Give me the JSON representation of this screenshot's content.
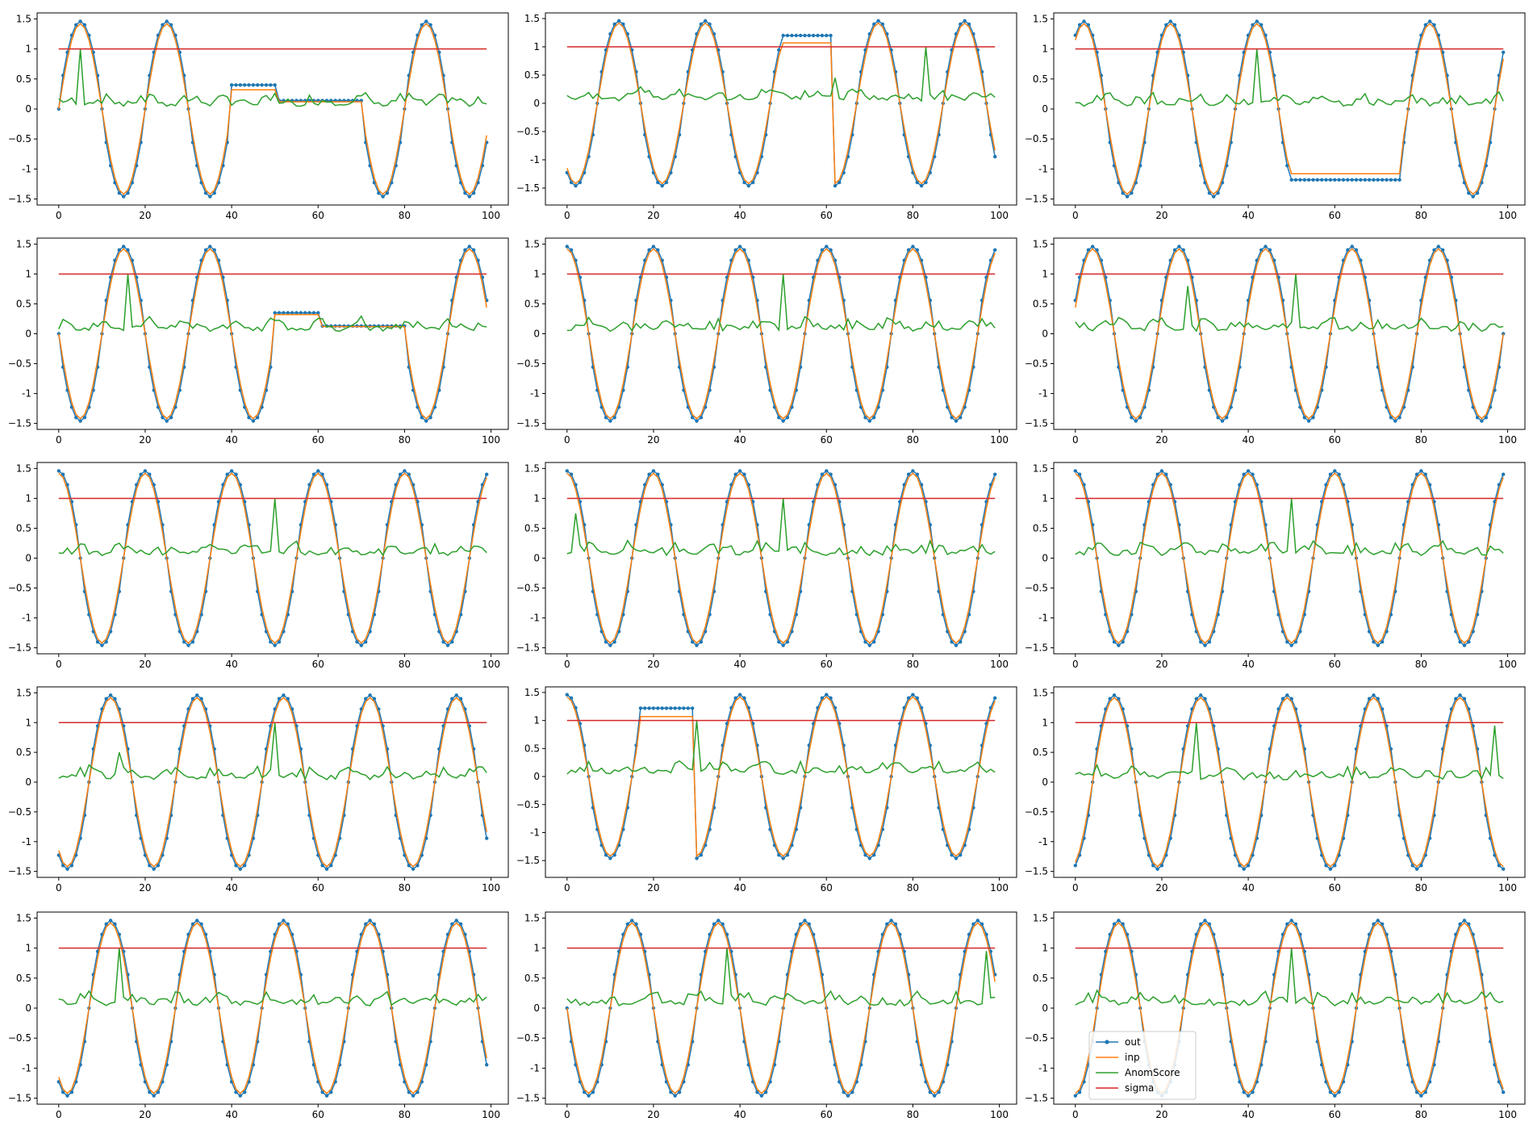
{
  "figure": {
    "rows": 5,
    "cols": 3,
    "legend_entries": [
      "out",
      "inp",
      "AnomScore",
      "sigma"
    ],
    "legend_panel": 14,
    "legend_placement": "lower-left"
  },
  "colors": {
    "out": "#1f77b4",
    "inp": "#ff7f0e",
    "anom": "#2ca02c",
    "sigma": "#d62728"
  },
  "chart_data": [
    {
      "type": "line",
      "title": "",
      "xlabel": "",
      "ylabel": "",
      "xlim": [
        -5,
        104
      ],
      "ylim": [
        -1.6,
        1.6
      ],
      "x_ticks": [
        0,
        20,
        40,
        60,
        80,
        100
      ],
      "y_ticks": [
        -1.5,
        -1.0,
        -0.5,
        0.0,
        0.5,
        1.0,
        1.5
      ],
      "grid": false,
      "sigma": 1.0,
      "sine": {
        "period": 20,
        "peak_x": 5,
        "amplitude": 1.42
      },
      "segments": [
        {
          "x0": 40,
          "x1": 50,
          "inp": 0.32,
          "out": 0.4
        },
        {
          "x0": 51,
          "x1": 70,
          "inp": 0.12,
          "out": 0.14
        }
      ],
      "spikes": [
        {
          "x": 5,
          "value": 1.0
        }
      ],
      "series": [
        {
          "name": "out"
        },
        {
          "name": "inp"
        },
        {
          "name": "AnomScore"
        },
        {
          "name": "sigma"
        }
      ]
    },
    {
      "type": "line",
      "title": "",
      "xlabel": "",
      "ylabel": "",
      "xlim": [
        -5,
        104
      ],
      "ylim": [
        -1.8,
        1.6
      ],
      "x_ticks": [
        0,
        20,
        40,
        60,
        80,
        100
      ],
      "y_ticks": [
        -1.5,
        -1.0,
        -0.5,
        0.0,
        0.5,
        1.0,
        1.5
      ],
      "grid": false,
      "sigma": 1.0,
      "sine": {
        "period": 20,
        "peak_x": 12,
        "amplitude": 1.42
      },
      "segments": [
        {
          "x0": 50,
          "x1": 61,
          "inp": 1.07,
          "out": 1.2
        }
      ],
      "spikes": [
        {
          "x": 83,
          "value": 1.0
        },
        {
          "x": 62,
          "value": 0.45
        }
      ],
      "series": [
        {
          "name": "out"
        },
        {
          "name": "inp"
        },
        {
          "name": "AnomScore"
        },
        {
          "name": "sigma"
        }
      ]
    },
    {
      "type": "line",
      "title": "",
      "xlabel": "",
      "ylabel": "",
      "xlim": [
        -5,
        104
      ],
      "ylim": [
        -1.6,
        1.6
      ],
      "x_ticks": [
        0,
        20,
        40,
        60,
        80,
        100
      ],
      "y_ticks": [
        -1.5,
        -1.0,
        -0.5,
        0.0,
        0.5,
        1.0,
        1.5
      ],
      "grid": false,
      "sigma": 1.0,
      "sine": {
        "period": 20,
        "peak_x": 2,
        "amplitude": 1.42
      },
      "segments": [
        {
          "x0": 50,
          "x1": 75,
          "inp": -1.08,
          "out": -1.18
        }
      ],
      "spikes": [
        {
          "x": 42,
          "value": 1.0
        }
      ],
      "series": [
        {
          "name": "out"
        },
        {
          "name": "inp"
        },
        {
          "name": "AnomScore"
        },
        {
          "name": "sigma"
        }
      ]
    },
    {
      "type": "line",
      "title": "",
      "xlabel": "",
      "ylabel": "",
      "xlim": [
        -5,
        104
      ],
      "ylim": [
        -1.6,
        1.6
      ],
      "x_ticks": [
        0,
        20,
        40,
        60,
        80,
        100
      ],
      "y_ticks": [
        -1.5,
        -1.0,
        -0.5,
        0.0,
        0.5,
        1.0,
        1.5
      ],
      "grid": false,
      "sigma": 1.0,
      "sine": {
        "period": 20,
        "peak_x": 15,
        "amplitude": 1.42
      },
      "segments": [
        {
          "x0": 50,
          "x1": 60,
          "inp": 0.32,
          "out": 0.35
        },
        {
          "x0": 61,
          "x1": 80,
          "inp": 0.12,
          "out": 0.13
        }
      ],
      "spikes": [
        {
          "x": 16,
          "value": 1.0
        }
      ],
      "series": [
        {
          "name": "out"
        },
        {
          "name": "inp"
        },
        {
          "name": "AnomScore"
        },
        {
          "name": "sigma"
        }
      ]
    },
    {
      "type": "line",
      "title": "",
      "xlabel": "",
      "ylabel": "",
      "xlim": [
        -5,
        104
      ],
      "ylim": [
        -1.6,
        1.6
      ],
      "x_ticks": [
        0,
        20,
        40,
        60,
        80,
        100
      ],
      "y_ticks": [
        -1.5,
        -1.0,
        -0.5,
        0.0,
        0.5,
        1.0,
        1.5
      ],
      "grid": false,
      "sigma": 1.0,
      "sine": {
        "period": 20,
        "peak_x": 0,
        "amplitude": 1.42
      },
      "segments": [],
      "spikes": [
        {
          "x": 50,
          "value": 1.0
        }
      ],
      "series": [
        {
          "name": "out"
        },
        {
          "name": "inp"
        },
        {
          "name": "AnomScore"
        },
        {
          "name": "sigma"
        }
      ]
    },
    {
      "type": "line",
      "title": "",
      "xlabel": "",
      "ylabel": "",
      "xlim": [
        -5,
        104
      ],
      "ylim": [
        -1.6,
        1.6
      ],
      "x_ticks": [
        0,
        20,
        40,
        60,
        80,
        100
      ],
      "y_ticks": [
        -1.5,
        -1.0,
        -0.5,
        0.0,
        0.5,
        1.0,
        1.5
      ],
      "grid": false,
      "sigma": 1.0,
      "sine": {
        "period": 20,
        "peak_x": 4,
        "amplitude": 1.42
      },
      "segments": [],
      "spikes": [
        {
          "x": 51,
          "value": 1.0
        },
        {
          "x": 26,
          "value": 0.8
        }
      ],
      "series": [
        {
          "name": "out"
        },
        {
          "name": "inp"
        },
        {
          "name": "AnomScore"
        },
        {
          "name": "sigma"
        }
      ]
    },
    {
      "type": "line",
      "title": "",
      "xlabel": "",
      "ylabel": "",
      "xlim": [
        -5,
        104
      ],
      "ylim": [
        -1.6,
        1.6
      ],
      "x_ticks": [
        0,
        20,
        40,
        60,
        80,
        100
      ],
      "y_ticks": [
        -1.5,
        -1.0,
        -0.5,
        0.0,
        0.5,
        1.0,
        1.5
      ],
      "grid": false,
      "sigma": 1.0,
      "sine": {
        "period": 20,
        "peak_x": 0,
        "amplitude": 1.42
      },
      "segments": [],
      "spikes": [
        {
          "x": 50,
          "value": 1.0
        }
      ],
      "series": [
        {
          "name": "out"
        },
        {
          "name": "inp"
        },
        {
          "name": "AnomScore"
        },
        {
          "name": "sigma"
        }
      ]
    },
    {
      "type": "line",
      "title": "",
      "xlabel": "",
      "ylabel": "",
      "xlim": [
        -5,
        104
      ],
      "ylim": [
        -1.6,
        1.6
      ],
      "x_ticks": [
        0,
        20,
        40,
        60,
        80,
        100
      ],
      "y_ticks": [
        -1.5,
        -1.0,
        -0.5,
        0.0,
        0.5,
        1.0,
        1.5
      ],
      "grid": false,
      "sigma": 1.0,
      "sine": {
        "period": 20,
        "peak_x": 0,
        "amplitude": 1.42
      },
      "segments": [],
      "spikes": [
        {
          "x": 50,
          "value": 1.0
        },
        {
          "x": 2,
          "value": 0.75
        }
      ],
      "series": [
        {
          "name": "out"
        },
        {
          "name": "inp"
        },
        {
          "name": "AnomScore"
        },
        {
          "name": "sigma"
        }
      ]
    },
    {
      "type": "line",
      "title": "",
      "xlabel": "",
      "ylabel": "",
      "xlim": [
        -5,
        104
      ],
      "ylim": [
        -1.6,
        1.6
      ],
      "x_ticks": [
        0,
        20,
        40,
        60,
        80,
        100
      ],
      "y_ticks": [
        -1.5,
        -1.0,
        -0.5,
        0.0,
        0.5,
        1.0,
        1.5
      ],
      "grid": false,
      "sigma": 1.0,
      "sine": {
        "period": 20,
        "peak_x": 0,
        "amplitude": 1.42
      },
      "segments": [],
      "spikes": [
        {
          "x": 50,
          "value": 1.0
        }
      ],
      "series": [
        {
          "name": "out"
        },
        {
          "name": "inp"
        },
        {
          "name": "AnomScore"
        },
        {
          "name": "sigma"
        }
      ]
    },
    {
      "type": "line",
      "title": "",
      "xlabel": "",
      "ylabel": "",
      "xlim": [
        -5,
        104
      ],
      "ylim": [
        -1.6,
        1.6
      ],
      "x_ticks": [
        0,
        20,
        40,
        60,
        80,
        100
      ],
      "y_ticks": [
        -1.5,
        -1.0,
        -0.5,
        0.0,
        0.5,
        1.0,
        1.5
      ],
      "grid": false,
      "sigma": 1.0,
      "sine": {
        "period": 20,
        "peak_x": 12,
        "amplitude": 1.42
      },
      "segments": [],
      "spikes": [
        {
          "x": 50,
          "value": 1.0
        },
        {
          "x": 14,
          "value": 0.5
        }
      ],
      "series": [
        {
          "name": "out"
        },
        {
          "name": "inp"
        },
        {
          "name": "AnomScore"
        },
        {
          "name": "sigma"
        }
      ]
    },
    {
      "type": "line",
      "title": "",
      "xlabel": "",
      "ylabel": "",
      "xlim": [
        -5,
        104
      ],
      "ylim": [
        -1.8,
        1.6
      ],
      "x_ticks": [
        0,
        20,
        40,
        60,
        80,
        100
      ],
      "y_ticks": [
        -1.5,
        -1.0,
        -0.5,
        0.0,
        0.5,
        1.0,
        1.5
      ],
      "grid": false,
      "sigma": 1.0,
      "sine": {
        "period": 20,
        "peak_x": 0,
        "amplitude": 1.42
      },
      "segments": [
        {
          "x0": 17,
          "x1": 29,
          "inp": 1.07,
          "out": 1.22
        }
      ],
      "spikes": [
        {
          "x": 30,
          "value": 1.0
        }
      ],
      "series": [
        {
          "name": "out"
        },
        {
          "name": "inp"
        },
        {
          "name": "AnomScore"
        },
        {
          "name": "sigma"
        }
      ]
    },
    {
      "type": "line",
      "title": "",
      "xlabel": "",
      "ylabel": "",
      "xlim": [
        -5,
        104
      ],
      "ylim": [
        -1.6,
        1.6
      ],
      "x_ticks": [
        0,
        20,
        40,
        60,
        80,
        100
      ],
      "y_ticks": [
        -1.5,
        -1.0,
        -0.5,
        0.0,
        0.5,
        1.0,
        1.5
      ],
      "grid": false,
      "sigma": 1.0,
      "sine": {
        "period": 20,
        "peak_x": 9,
        "amplitude": 1.42
      },
      "segments": [],
      "spikes": [
        {
          "x": 28,
          "value": 1.0
        },
        {
          "x": 97,
          "value": 0.95
        }
      ],
      "series": [
        {
          "name": "out"
        },
        {
          "name": "inp"
        },
        {
          "name": "AnomScore"
        },
        {
          "name": "sigma"
        }
      ]
    },
    {
      "type": "line",
      "title": "",
      "xlabel": "",
      "ylabel": "",
      "xlim": [
        -5,
        104
      ],
      "ylim": [
        -1.6,
        1.6
      ],
      "x_ticks": [
        0,
        20,
        40,
        60,
        80,
        100
      ],
      "y_ticks": [
        -1.5,
        -1.0,
        -0.5,
        0.0,
        0.5,
        1.0,
        1.5
      ],
      "grid": false,
      "sigma": 1.0,
      "sine": {
        "period": 20,
        "peak_x": 12,
        "amplitude": 1.42
      },
      "segments": [],
      "spikes": [
        {
          "x": 14,
          "value": 1.0
        }
      ],
      "series": [
        {
          "name": "out"
        },
        {
          "name": "inp"
        },
        {
          "name": "AnomScore"
        },
        {
          "name": "sigma"
        }
      ]
    },
    {
      "type": "line",
      "title": "",
      "xlabel": "",
      "ylabel": "",
      "xlim": [
        -5,
        104
      ],
      "ylim": [
        -1.6,
        1.6
      ],
      "x_ticks": [
        0,
        20,
        40,
        60,
        80,
        100
      ],
      "y_ticks": [
        -1.5,
        -1.0,
        -0.5,
        0.0,
        0.5,
        1.0,
        1.5
      ],
      "grid": false,
      "sigma": 1.0,
      "sine": {
        "period": 20,
        "peak_x": 15,
        "amplitude": 1.42
      },
      "segments": [],
      "spikes": [
        {
          "x": 37,
          "value": 1.0
        },
        {
          "x": 97,
          "value": 0.95
        }
      ],
      "series": [
        {
          "name": "out"
        },
        {
          "name": "inp"
        },
        {
          "name": "AnomScore"
        },
        {
          "name": "sigma"
        }
      ]
    },
    {
      "type": "line",
      "title": "",
      "xlabel": "",
      "ylabel": "",
      "xlim": [
        -5,
        104
      ],
      "ylim": [
        -1.6,
        1.6
      ],
      "x_ticks": [
        0,
        20,
        40,
        60,
        80,
        100
      ],
      "y_ticks": [
        -1.5,
        -1.0,
        -0.5,
        0.0,
        0.5,
        1.0,
        1.5
      ],
      "grid": false,
      "sigma": 1.0,
      "sine": {
        "period": 20,
        "peak_x": 10,
        "amplitude": 1.42
      },
      "segments": [],
      "spikes": [
        {
          "x": 50,
          "value": 1.0
        }
      ],
      "series": [
        {
          "name": "out"
        },
        {
          "name": "inp"
        },
        {
          "name": "AnomScore"
        },
        {
          "name": "sigma"
        }
      ]
    }
  ]
}
